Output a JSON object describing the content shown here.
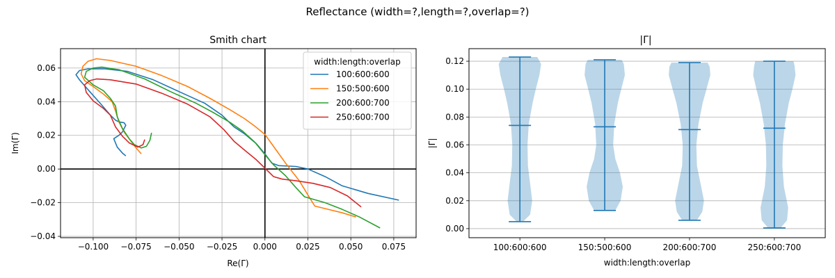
{
  "suptitle": "Reflectance (width=?,length=?,overlap=?)",
  "chart_data": [
    {
      "type": "line",
      "title": "Smith chart",
      "xlabel": "Re(Γ)",
      "ylabel": "Im(Γ)",
      "xlim": [
        -0.119,
        0.088
      ],
      "ylim": [
        -0.0408,
        0.0715
      ],
      "xticks": [
        "−0.100",
        "−0.075",
        "−0.050",
        "−0.025",
        "0.000",
        "0.025",
        "0.050",
        "0.075"
      ],
      "xtick_values": [
        -0.1,
        -0.075,
        -0.05,
        -0.025,
        0.0,
        0.025,
        0.05,
        0.075
      ],
      "yticks": [
        "−0.04",
        "−0.02",
        "0.00",
        "0.02",
        "0.04",
        "0.06"
      ],
      "ytick_values": [
        -0.04,
        -0.02,
        0.0,
        0.02,
        0.04,
        0.06
      ],
      "grid": true,
      "axes_lines": true,
      "legend": {
        "title": "width:length:overlap",
        "placement": "top-right"
      },
      "series": [
        {
          "name": "100:600:600",
          "color": "#1f77b4",
          "points": [
            [
              0.078,
              -0.0185
            ],
            [
              0.06,
              -0.0145
            ],
            [
              0.045,
              -0.01
            ],
            [
              0.035,
              -0.0045
            ],
            [
              0.025,
              0.0
            ],
            [
              0.018,
              0.0015
            ],
            [
              0.008,
              0.002
            ],
            [
              0.004,
              0.0035
            ],
            [
              0.0,
              0.009
            ],
            [
              -0.005,
              0.015
            ],
            [
              -0.012,
              0.021
            ],
            [
              -0.018,
              0.025
            ],
            [
              -0.025,
              0.032
            ],
            [
              -0.035,
              0.039
            ],
            [
              -0.05,
              0.046
            ],
            [
              -0.065,
              0.053
            ],
            [
              -0.08,
              0.058
            ],
            [
              -0.093,
              0.0595
            ],
            [
              -0.103,
              0.0595
            ],
            [
              -0.108,
              0.0585
            ],
            [
              -0.11,
              0.056
            ],
            [
              -0.108,
              0.053
            ],
            [
              -0.102,
              0.046
            ],
            [
              -0.095,
              0.038
            ],
            [
              -0.09,
              0.032
            ],
            [
              -0.087,
              0.029
            ],
            [
              -0.085,
              0.028
            ],
            [
              -0.082,
              0.0275
            ],
            [
              -0.081,
              0.026
            ],
            [
              -0.083,
              0.022
            ],
            [
              -0.085,
              0.02
            ],
            [
              -0.088,
              0.018
            ],
            [
              -0.086,
              0.013
            ],
            [
              -0.083,
              0.0095
            ],
            [
              -0.081,
              0.0078
            ]
          ]
        },
        {
          "name": "150:500:600",
          "color": "#ff7f0e",
          "points": [
            [
              0.053,
              -0.0285
            ],
            [
              0.045,
              -0.026
            ],
            [
              0.035,
              -0.0235
            ],
            [
              0.029,
              -0.022
            ],
            [
              0.026,
              -0.017
            ],
            [
              0.02,
              -0.007
            ],
            [
              0.012,
              0.0035
            ],
            [
              0.006,
              0.012
            ],
            [
              0.0,
              0.0205
            ],
            [
              -0.006,
              0.0255
            ],
            [
              -0.012,
              0.03
            ],
            [
              -0.02,
              0.035
            ],
            [
              -0.032,
              0.042
            ],
            [
              -0.045,
              0.049
            ],
            [
              -0.06,
              0.0555
            ],
            [
              -0.075,
              0.061
            ],
            [
              -0.09,
              0.0645
            ],
            [
              -0.098,
              0.0655
            ],
            [
              -0.103,
              0.064
            ],
            [
              -0.106,
              0.061
            ],
            [
              -0.107,
              0.0565
            ],
            [
              -0.105,
              0.0525
            ],
            [
              -0.1,
              0.049
            ],
            [
              -0.094,
              0.0445
            ],
            [
              -0.089,
              0.04
            ],
            [
              -0.087,
              0.0345
            ],
            [
              -0.085,
              0.028
            ],
            [
              -0.082,
              0.022
            ],
            [
              -0.078,
              0.0165
            ],
            [
              -0.075,
              0.0125
            ],
            [
              -0.072,
              0.009
            ]
          ]
        },
        {
          "name": "200:600:700",
          "color": "#2ca02c",
          "points": [
            [
              0.067,
              -0.035
            ],
            [
              0.055,
              -0.0285
            ],
            [
              0.045,
              -0.024
            ],
            [
              0.035,
              -0.02
            ],
            [
              0.023,
              -0.0165
            ],
            [
              0.018,
              -0.011
            ],
            [
              0.012,
              -0.004
            ],
            [
              0.005,
              0.0025
            ],
            [
              0.0,
              0.0085
            ],
            [
              -0.006,
              0.016
            ],
            [
              -0.013,
              0.0225
            ],
            [
              -0.02,
              0.0275
            ],
            [
              -0.03,
              0.0335
            ],
            [
              -0.04,
              0.039
            ],
            [
              -0.055,
              0.046
            ],
            [
              -0.07,
              0.0535
            ],
            [
              -0.085,
              0.059
            ],
            [
              -0.095,
              0.0605
            ],
            [
              -0.1,
              0.06
            ],
            [
              -0.104,
              0.058
            ],
            [
              -0.105,
              0.0545
            ],
            [
              -0.1,
              0.05
            ],
            [
              -0.094,
              0.0465
            ],
            [
              -0.09,
              0.042
            ],
            [
              -0.087,
              0.0375
            ],
            [
              -0.086,
              0.031
            ],
            [
              -0.083,
              0.024
            ],
            [
              -0.079,
              0.018
            ],
            [
              -0.076,
              0.0145
            ],
            [
              -0.072,
              0.0125
            ],
            [
              -0.069,
              0.0135
            ],
            [
              -0.067,
              0.017
            ],
            [
              -0.066,
              0.0215
            ]
          ]
        },
        {
          "name": "250:600:700",
          "color": "#d62728",
          "points": [
            [
              0.056,
              -0.0225
            ],
            [
              0.048,
              -0.016
            ],
            [
              0.038,
              -0.011
            ],
            [
              0.028,
              -0.0085
            ],
            [
              0.018,
              -0.007
            ],
            [
              0.01,
              -0.006
            ],
            [
              0.005,
              -0.0045
            ],
            [
              0.0,
              0.0005
            ],
            [
              -0.005,
              0.0055
            ],
            [
              -0.011,
              0.0105
            ],
            [
              -0.018,
              0.0165
            ],
            [
              -0.024,
              0.0235
            ],
            [
              -0.032,
              0.031
            ],
            [
              -0.045,
              0.0385
            ],
            [
              -0.06,
              0.045
            ],
            [
              -0.075,
              0.0505
            ],
            [
              -0.09,
              0.053
            ],
            [
              -0.098,
              0.0535
            ],
            [
              -0.102,
              0.0525
            ],
            [
              -0.105,
              0.05
            ],
            [
              -0.104,
              0.0455
            ],
            [
              -0.1,
              0.0405
            ],
            [
              -0.094,
              0.036
            ],
            [
              -0.09,
              0.032
            ],
            [
              -0.087,
              0.025
            ],
            [
              -0.083,
              0.0195
            ],
            [
              -0.079,
              0.0155
            ],
            [
              -0.074,
              0.013
            ],
            [
              -0.071,
              0.0145
            ],
            [
              -0.07,
              0.0175
            ]
          ]
        }
      ]
    },
    {
      "type": "violin",
      "title": "|Γ|",
      "xlabel": "width:length:overlap",
      "ylabel": "|Γ|",
      "ylim": [
        -0.0065,
        0.129
      ],
      "yticks": [
        "0.00",
        "0.02",
        "0.04",
        "0.06",
        "0.08",
        "0.10",
        "0.12"
      ],
      "ytick_values": [
        0.0,
        0.02,
        0.04,
        0.06,
        0.08,
        0.1,
        0.12
      ],
      "grid": "horizontal",
      "categories": [
        "100:600:600",
        "150:500:600",
        "200:600:700",
        "250:600:700"
      ],
      "color": "#1f77b4",
      "violins": [
        {
          "min": 0.005,
          "mean": 0.074,
          "max": 0.123,
          "profile": [
            [
              0.005,
              0.15
            ],
            [
              0.01,
              0.48
            ],
            [
              0.02,
              0.58
            ],
            [
              0.03,
              0.5
            ],
            [
              0.045,
              0.38
            ],
            [
              0.06,
              0.36
            ],
            [
              0.075,
              0.42
            ],
            [
              0.09,
              0.6
            ],
            [
              0.1,
              0.75
            ],
            [
              0.11,
              0.92
            ],
            [
              0.118,
              1.0
            ],
            [
              0.123,
              0.82
            ]
          ]
        },
        {
          "min": 0.013,
          "mean": 0.073,
          "max": 0.121,
          "profile": [
            [
              0.013,
              0.5
            ],
            [
              0.02,
              0.75
            ],
            [
              0.03,
              0.85
            ],
            [
              0.04,
              0.72
            ],
            [
              0.05,
              0.5
            ],
            [
              0.06,
              0.4
            ],
            [
              0.075,
              0.45
            ],
            [
              0.09,
              0.62
            ],
            [
              0.1,
              0.78
            ],
            [
              0.11,
              0.95
            ],
            [
              0.118,
              0.9
            ],
            [
              0.121,
              0.8
            ]
          ]
        },
        {
          "min": 0.006,
          "mean": 0.071,
          "max": 0.119,
          "profile": [
            [
              0.006,
              0.35
            ],
            [
              0.012,
              0.6
            ],
            [
              0.02,
              0.68
            ],
            [
              0.03,
              0.55
            ],
            [
              0.045,
              0.35
            ],
            [
              0.06,
              0.32
            ],
            [
              0.075,
              0.42
            ],
            [
              0.09,
              0.62
            ],
            [
              0.1,
              0.8
            ],
            [
              0.11,
              0.98
            ],
            [
              0.116,
              0.95
            ],
            [
              0.119,
              0.85
            ]
          ]
        },
        {
          "min": 0.0005,
          "mean": 0.072,
          "max": 0.12,
          "profile": [
            [
              0.0005,
              0.3
            ],
            [
              0.006,
              0.6
            ],
            [
              0.015,
              0.65
            ],
            [
              0.03,
              0.45
            ],
            [
              0.045,
              0.38
            ],
            [
              0.06,
              0.4
            ],
            [
              0.075,
              0.5
            ],
            [
              0.09,
              0.68
            ],
            [
              0.1,
              0.85
            ],
            [
              0.11,
              1.0
            ],
            [
              0.117,
              0.95
            ],
            [
              0.12,
              0.9
            ]
          ]
        }
      ]
    }
  ]
}
